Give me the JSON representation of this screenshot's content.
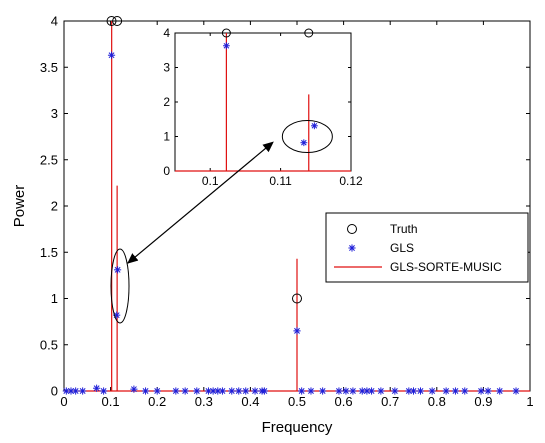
{
  "chart_data": {
    "type": "line",
    "xlabel": "Frequency",
    "ylabel": "Power",
    "xlim": [
      0,
      1
    ],
    "ylim": [
      0,
      4
    ],
    "x_ticks": [
      "0",
      "0.1",
      "0.2",
      "0.3",
      "0.4",
      "0.5",
      "0.6",
      "0.7",
      "0.8",
      "0.9",
      "1"
    ],
    "y_ticks": [
      "0",
      "0.5",
      "1",
      "1.5",
      "2",
      "2.5",
      "3",
      "3.5",
      "4"
    ],
    "colors": {
      "truth": "#000000",
      "gls": "#1f1fd8",
      "music": "#e01010"
    },
    "legend_position": "right",
    "series": [
      {
        "name": "Truth",
        "marker": "circle",
        "points": [
          [
            0.102,
            4.0
          ],
          [
            0.114,
            4.0
          ],
          [
            0.5,
            1.0
          ]
        ]
      },
      {
        "name": "GLS",
        "marker": "asterisk",
        "points": [
          [
            0.102,
            3.63
          ],
          [
            0.113,
            0.82
          ],
          [
            0.115,
            1.31
          ],
          [
            0.5,
            0.65
          ],
          [
            0.005,
            0.0
          ],
          [
            0.015,
            0.0
          ],
          [
            0.025,
            0.0
          ],
          [
            0.04,
            0.0
          ],
          [
            0.07,
            0.03
          ],
          [
            0.085,
            0.0
          ],
          [
            0.15,
            0.02
          ],
          [
            0.175,
            0.0
          ],
          [
            0.2,
            0.0
          ],
          [
            0.24,
            0.0
          ],
          [
            0.26,
            0.0
          ],
          [
            0.285,
            0.0
          ],
          [
            0.31,
            0.0
          ],
          [
            0.32,
            0.0
          ],
          [
            0.33,
            0.0
          ],
          [
            0.34,
            0.0
          ],
          [
            0.36,
            0.0
          ],
          [
            0.375,
            0.0
          ],
          [
            0.39,
            0.0
          ],
          [
            0.41,
            0.0
          ],
          [
            0.425,
            0.0
          ],
          [
            0.43,
            0.0
          ],
          [
            0.51,
            0.0
          ],
          [
            0.53,
            0.0
          ],
          [
            0.555,
            0.0
          ],
          [
            0.59,
            0.0
          ],
          [
            0.605,
            0.0
          ],
          [
            0.62,
            0.0
          ],
          [
            0.64,
            0.0
          ],
          [
            0.65,
            0.0
          ],
          [
            0.66,
            0.0
          ],
          [
            0.68,
            0.0
          ],
          [
            0.71,
            0.0
          ],
          [
            0.74,
            0.0
          ],
          [
            0.75,
            0.0
          ],
          [
            0.765,
            0.0
          ],
          [
            0.79,
            0.0
          ],
          [
            0.82,
            0.0
          ],
          [
            0.84,
            0.0
          ],
          [
            0.86,
            0.0
          ],
          [
            0.895,
            0.0
          ],
          [
            0.91,
            0.0
          ],
          [
            0.935,
            0.0
          ],
          [
            0.97,
            0.0
          ]
        ]
      },
      {
        "name": "GLS-SORTE-MUSIC",
        "style": "stem",
        "points": [
          [
            0.1023,
            4.0
          ],
          [
            0.114,
            2.22
          ],
          [
            0.5,
            1.43
          ]
        ]
      }
    ],
    "inset": {
      "xlim": [
        0.095,
        0.12
      ],
      "ylim": [
        0,
        4
      ],
      "x_ticks": [
        "0.1",
        "0.11",
        "0.12"
      ],
      "y_ticks": [
        "0",
        "1",
        "2",
        "3",
        "4"
      ],
      "truth": [
        [
          0.1023,
          4.0
        ],
        [
          0.114,
          4.0
        ]
      ],
      "gls": [
        [
          0.1023,
          3.63
        ],
        [
          0.1133,
          0.82
        ],
        [
          0.1148,
          1.31
        ]
      ],
      "music": [
        [
          0.1023,
          4.0
        ],
        [
          0.114,
          2.22
        ]
      ],
      "ellipse_center": [
        0.1138,
        1.0
      ]
    }
  }
}
